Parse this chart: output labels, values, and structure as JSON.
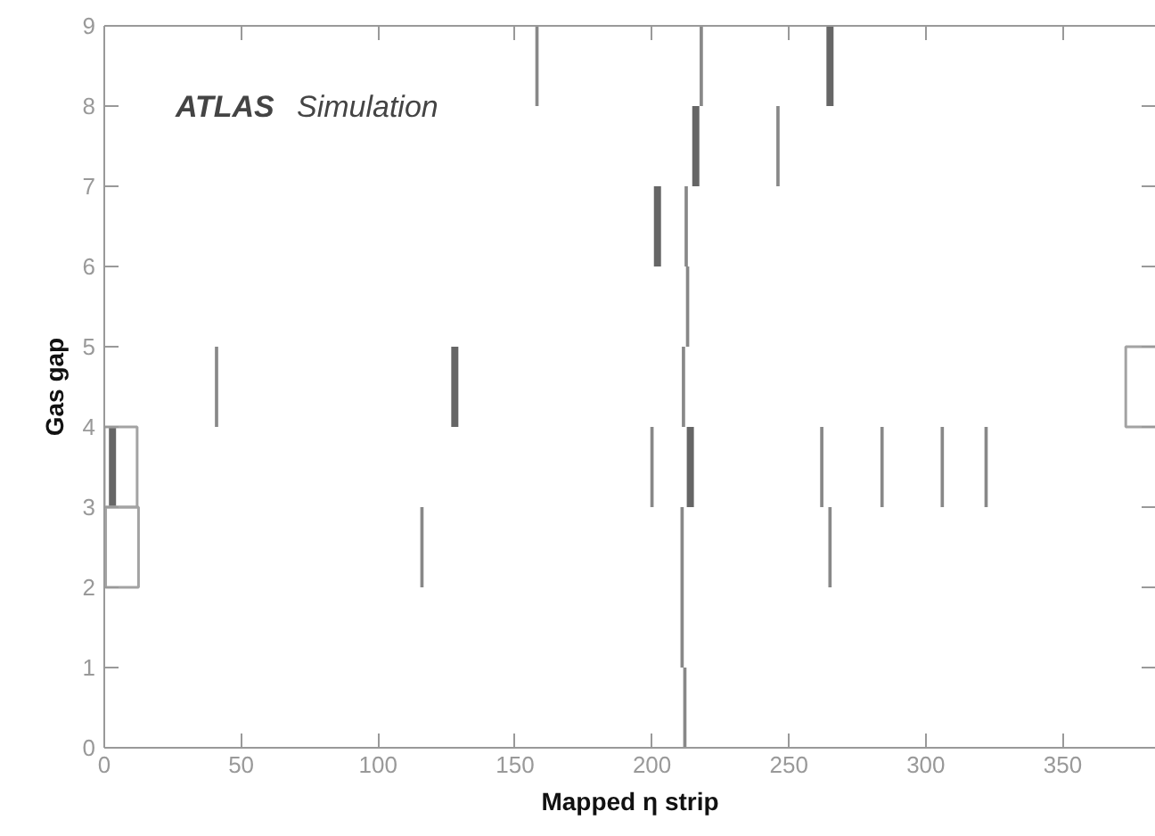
{
  "chart_data": {
    "type": "bar",
    "xlabel": "Mapped η strip",
    "ylabel": "Gas gap",
    "annotations": [
      "ATLAS Simulation"
    ],
    "xlim": [
      0,
      384
    ],
    "ylim": [
      0,
      9
    ],
    "xticks": [
      0,
      50,
      100,
      150,
      200,
      250,
      300,
      350
    ],
    "yticks": [
      0,
      1,
      2,
      3,
      4,
      5,
      6,
      7,
      8,
      9
    ],
    "grid": false,
    "series": [
      {
        "color": "#888888",
        "x": [
          41,
          116,
          158,
          200,
          211,
          211.5,
          212,
          212.5,
          213,
          218,
          246,
          262,
          265,
          284,
          306,
          322
        ],
        "base": [
          4,
          2,
          8,
          3,
          1,
          4,
          0,
          6,
          5,
          8,
          7,
          3,
          2,
          3,
          3,
          3
        ],
        "values": [
          1,
          1,
          1,
          1,
          2,
          1,
          1,
          1,
          1,
          1,
          1,
          1,
          1,
          1,
          1,
          1
        ]
      },
      {
        "color": "#666666",
        "x": [
          3,
          128,
          202,
          214,
          216,
          265
        ],
        "base": [
          3,
          4,
          6,
          3,
          7,
          8
        ],
        "values": [
          1,
          1,
          1,
          1,
          1,
          1
        ]
      },
      {
        "color": "#a3a3a3",
        "x": [
          6,
          6.5,
          379
        ],
        "base": [
          3,
          2,
          4
        ],
        "values": [
          1,
          1,
          1
        ]
      }
    ]
  }
}
